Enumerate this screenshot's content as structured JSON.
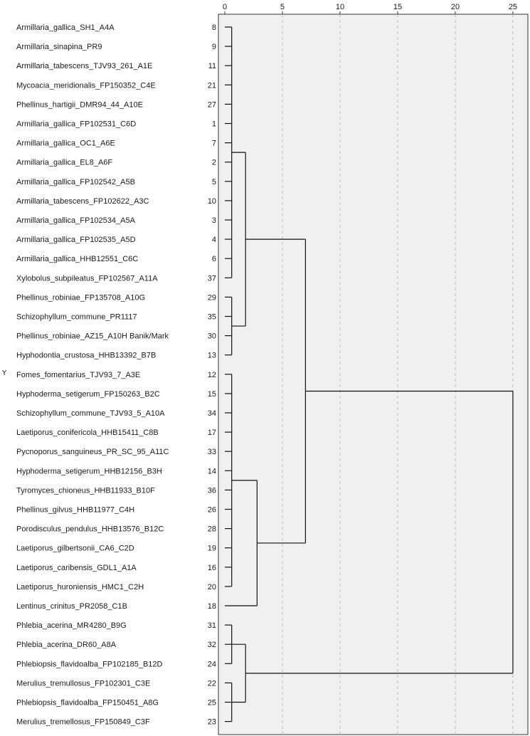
{
  "chart_data": {
    "type": "dendrogram",
    "y_axis_label": "Y",
    "x_ticks": [
      0,
      5,
      10,
      15,
      20,
      25
    ],
    "xlim": [
      0,
      26.3
    ],
    "grid": true,
    "leaves": [
      {
        "name": "Armillaria_gallica_SH1_A4A",
        "id": "8"
      },
      {
        "name": "Armillaria_sinapina_PR9",
        "id": "9"
      },
      {
        "name": "Armillaria_tabescens_TJV93_261_A1E",
        "id": "11"
      },
      {
        "name": "Mycoacia_meridionalis_FP150352_C4E",
        "id": "21"
      },
      {
        "name": "Phellinus_hartigii_DMR94_44_A10E",
        "id": "27"
      },
      {
        "name": "Armillaria_gallica_FP102531_C6D",
        "id": "1"
      },
      {
        "name": "Armillaria_gallica_OC1_A6E",
        "id": "7"
      },
      {
        "name": "Armillaria_gallica_EL8_A6F",
        "id": "2"
      },
      {
        "name": "Armillaria_gallica_FP102542_A5B",
        "id": "5"
      },
      {
        "name": "Armillaria_tabescens_FP102622_A3C",
        "id": "10"
      },
      {
        "name": "Armillaria_gallica_FP102534_A5A",
        "id": "3"
      },
      {
        "name": "Armillaria_gallica_FP102535_A5D",
        "id": "4"
      },
      {
        "name": "Armillaria_gallica_HHB12551_C6C",
        "id": "6"
      },
      {
        "name": "Xylobolus_subpileatus_FP102567_A11A",
        "id": "37"
      },
      {
        "name": "Phellinus_robiniae_FP135708_A10G",
        "id": "29"
      },
      {
        "name": "Schizophyllum_commune_PR1117",
        "id": "35"
      },
      {
        "name": "Phellinus_robiniae_AZ15_A10H Banik/Mark",
        "id": "30"
      },
      {
        "name": "Hyphodontia_crustosa_HHB13392_B7B",
        "id": "13"
      },
      {
        "name": "Fomes_fomentarius_TJV93_7_A3E",
        "id": "12"
      },
      {
        "name": "Hyphoderma_setigerum_FP150263_B2C",
        "id": "15"
      },
      {
        "name": "Schizophyllum_commune_TJV93_5_A10A",
        "id": "34"
      },
      {
        "name": "Laetiporus_conifericola_HHB15411_C8B",
        "id": "17"
      },
      {
        "name": "Pycnoporus_sanguineus_PR_SC_95_A11C",
        "id": "33"
      },
      {
        "name": "Hyphoderma_setigerum_HHB12156_B3H",
        "id": "14"
      },
      {
        "name": "Tyromyces_chioneus_HHB11933_B10F",
        "id": "36"
      },
      {
        "name": "Phellinus_gilvus_HHB11977_C4H",
        "id": "26"
      },
      {
        "name": "Porodisculus_pendulus_HHB13576_B12C",
        "id": "28"
      },
      {
        "name": "Laetiporus_gilbertsonii_CA6_C2D",
        "id": "19"
      },
      {
        "name": "Laetiporus_caribensis_GDL1_A1A",
        "id": "16"
      },
      {
        "name": "Laetiporus_huroniensis_HMC1_C2H",
        "id": "20"
      },
      {
        "name": "Lentinus_crinitus_PR2058_C1B",
        "id": "18"
      },
      {
        "name": "Phlebia_acerina_MR4280_B9G",
        "id": "31"
      },
      {
        "name": "Phlebia_acerina_DR60_A8A",
        "id": "32"
      },
      {
        "name": "Phlebiopsis_flavidoalba_FP102185_B12D",
        "id": "24"
      },
      {
        "name": "Merulius_tremullosus_FP102301_C3E",
        "id": "22"
      },
      {
        "name": "Phlebiopsis_flavidoalba_FP150451_A8G",
        "id": "25"
      },
      {
        "name": "Merulius_tremellosus_FP150849_C3F",
        "id": "23"
      }
    ],
    "merges": [
      {
        "id": "c1",
        "children": [
          0,
          1,
          2,
          3,
          4,
          5,
          6,
          7,
          8,
          9,
          10,
          11,
          12,
          13
        ],
        "height": 0.6
      },
      {
        "id": "c2",
        "children": [
          14,
          15,
          16,
          17
        ],
        "height": 0.6
      },
      {
        "id": "c3",
        "children": [
          "c1",
          "c2"
        ],
        "height": 1.8
      },
      {
        "id": "c4",
        "children": [
          18,
          19,
          20,
          21,
          22,
          23,
          24,
          25,
          26,
          27,
          28,
          29
        ],
        "height": 0.6
      },
      {
        "id": "c5",
        "children": [
          "c4",
          30
        ],
        "height": 2.8
      },
      {
        "id": "c6",
        "children": [
          "c3",
          "c5"
        ],
        "height": 7.0
      },
      {
        "id": "c7",
        "children": [
          31,
          32,
          33
        ],
        "height": 0.6
      },
      {
        "id": "c8",
        "children": [
          34,
          35,
          36
        ],
        "height": 0.6
      },
      {
        "id": "c9",
        "children": [
          "c7",
          "c8"
        ],
        "height": 1.8
      },
      {
        "id": "root",
        "children": [
          "c6",
          "c9"
        ],
        "height": 25.0
      }
    ]
  }
}
